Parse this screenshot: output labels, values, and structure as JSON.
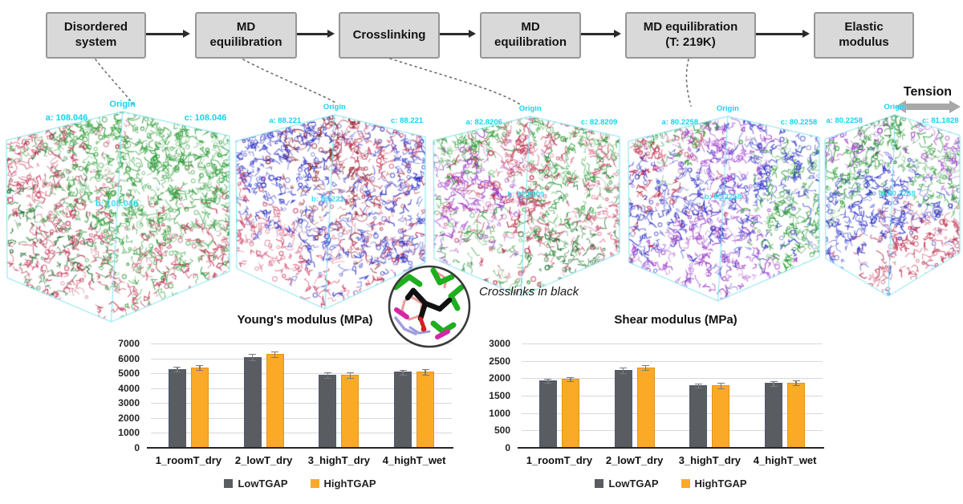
{
  "colors": {
    "accent_cyan": "#12d4f0",
    "box_fill": "#d9d9d9",
    "box_border": "#969696",
    "bar_gray": "#595c61",
    "bar_gray_border": "#4e5a74",
    "bar_orange": "#fbaa28",
    "tension_arrow": "#a8a8a8"
  },
  "flowchart": {
    "steps": [
      {
        "label": "Disordered\nsystem"
      },
      {
        "label": "MD\nequilibration"
      },
      {
        "label": "Crosslinking"
      },
      {
        "label": "MD\nequilibration"
      },
      {
        "label": "MD equilibration\n(T: 219K)"
      },
      {
        "label": "Elastic\nmodulus"
      }
    ]
  },
  "tension_label": "Tension",
  "inset": {
    "caption": "Crosslinks in black"
  },
  "snapshots": [
    {
      "origin_label": "Origin",
      "a_label": "a: 108.046",
      "b_label": "b: 108.046",
      "c_label": "c: 108.046"
    },
    {
      "origin_label": "Origin",
      "a_label": "a: 88.221",
      "b_label": "b: 88.221",
      "c_label": "c: 88.221"
    },
    {
      "origin_label": "Origin",
      "a_label": "a: 82.8206",
      "b_label": "b: 82.8209",
      "c_label": "c: 82.8209"
    },
    {
      "origin_label": "Origin",
      "a_label": "a: 80.2258",
      "b_label": "b: 80.2258",
      "c_label": "c: 80.2258"
    },
    {
      "origin_label": "Origin",
      "a_label": "a: 80.2258",
      "b_label": "b: 80.2258",
      "c_label": "c: 81.1828"
    }
  ],
  "chart_data": [
    {
      "type": "bar",
      "title": "Young's modulus (MPa)",
      "categories": [
        "1_roomT_dry",
        "2_lowT_dry",
        "3_highT_dry",
        "4_highT_wet"
      ],
      "series": [
        {
          "name": "LowTGAP",
          "color": "#595c61",
          "border": "#4e5a74",
          "values": [
            5300,
            6100,
            4900,
            5100
          ],
          "errors": [
            120,
            180,
            150,
            130
          ]
        },
        {
          "name": "HighTGAP",
          "color": "#fbaa28",
          "border": "#e09418",
          "values": [
            5400,
            6300,
            4900,
            5100
          ],
          "errors": [
            150,
            140,
            170,
            160
          ]
        }
      ],
      "ylim": [
        0,
        7000
      ],
      "ytick_step": 1000,
      "grid": true,
      "legend_position": "bottom",
      "xlabel": "",
      "ylabel": ""
    },
    {
      "type": "bar",
      "title": "Shear modulus (MPa)",
      "categories": [
        "1_roomT_dry",
        "2_lowT_dry",
        "3_highT_dry",
        "4_highT_wet"
      ],
      "series": [
        {
          "name": "LowTGAP",
          "color": "#595c61",
          "border": "#4e5a74",
          "values": [
            1940,
            2240,
            1800,
            1860
          ],
          "errors": [
            40,
            60,
            50,
            50
          ]
        },
        {
          "name": "HighTGAP",
          "color": "#fbaa28",
          "border": "#e09418",
          "values": [
            1990,
            2310,
            1810,
            1880
          ],
          "errors": [
            50,
            60,
            70,
            50
          ]
        }
      ],
      "ylim": [
        0,
        3000
      ],
      "ytick_step": 500,
      "grid": true,
      "legend_position": "bottom",
      "xlabel": "",
      "ylabel": ""
    }
  ]
}
